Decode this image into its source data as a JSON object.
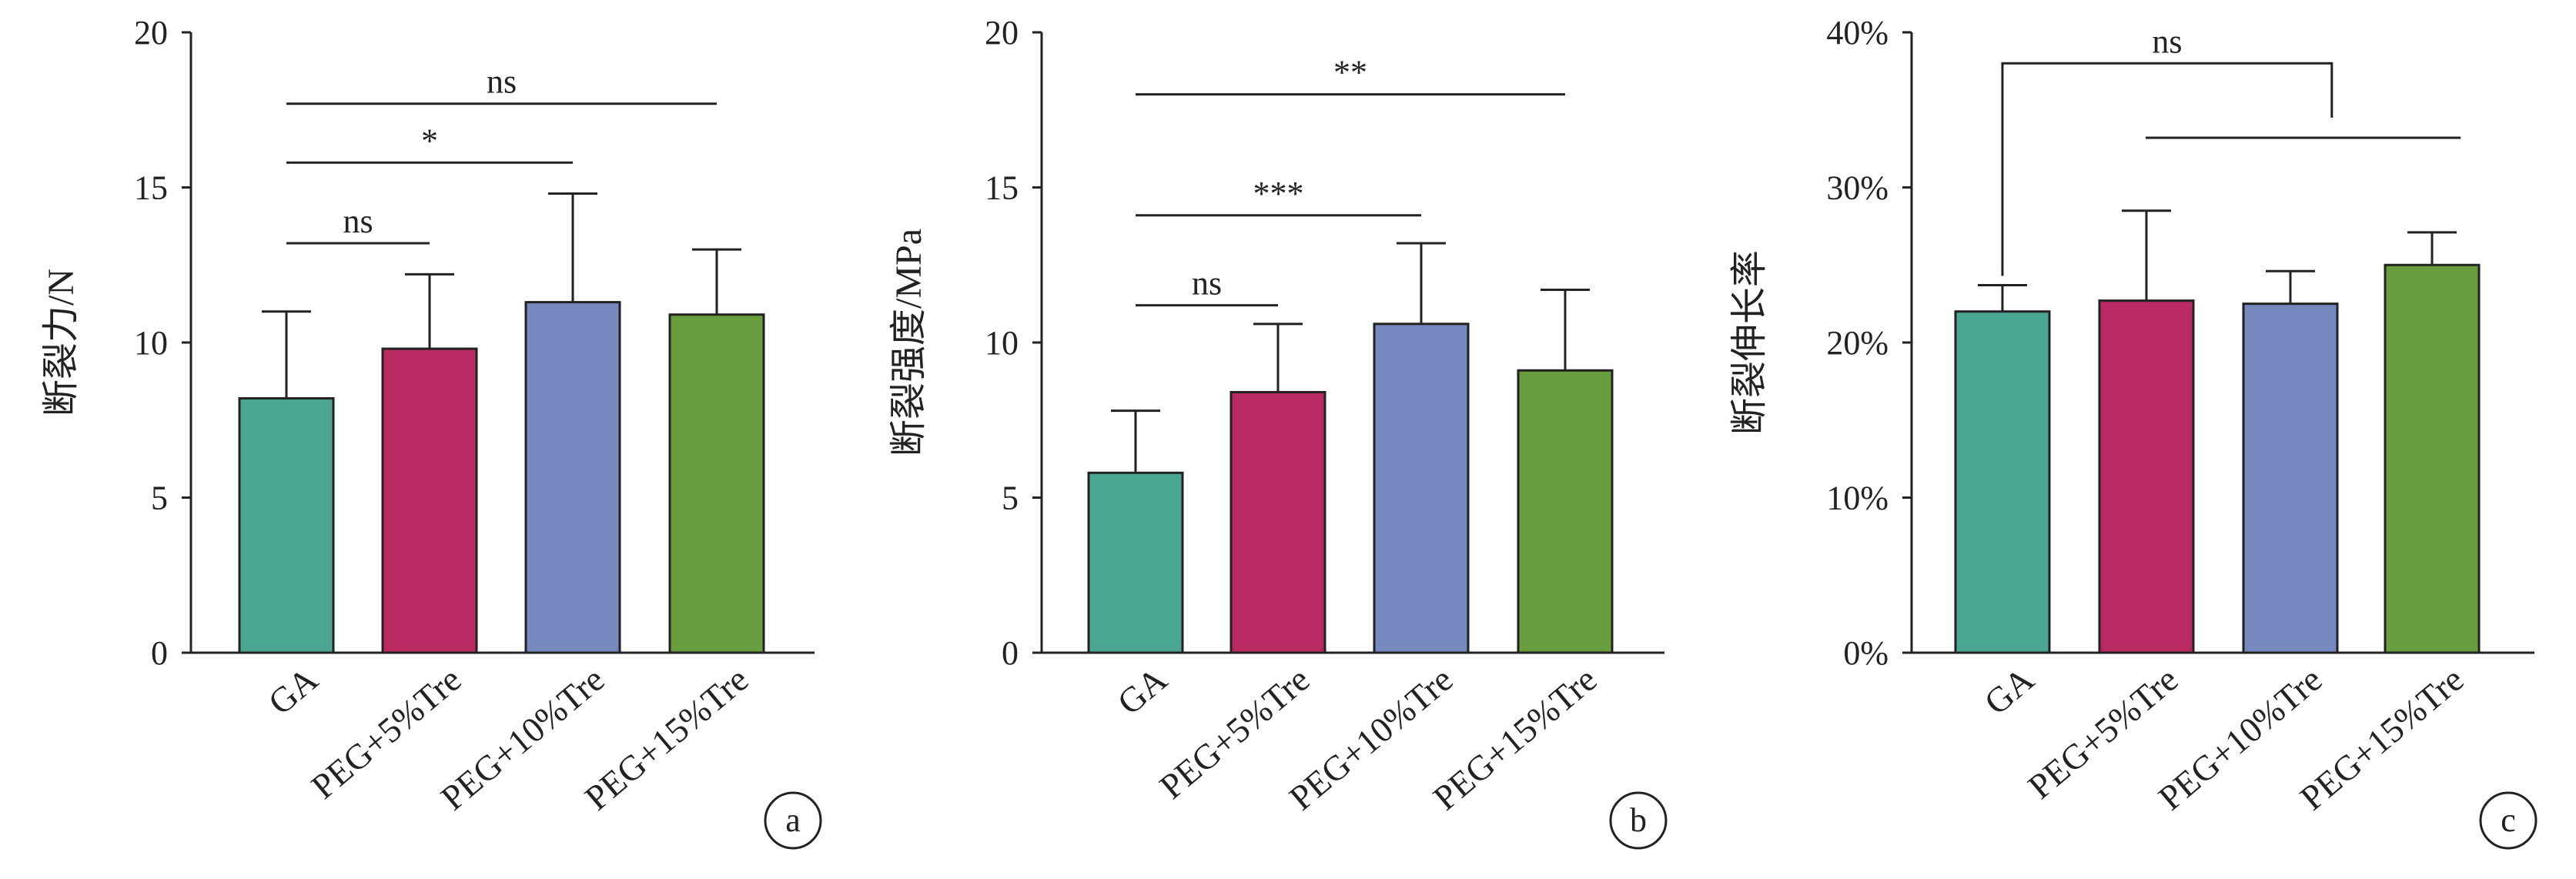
{
  "colors": {
    "axis": "#222222",
    "series": [
      "#4aa690",
      "#b92a62",
      "#7589bf",
      "#689e3d"
    ]
  },
  "chart_data": [
    {
      "type": "bar",
      "panel_label": "a",
      "categories": [
        "GA",
        "PEG+5%Tre",
        "PEG+10%Tre",
        "PEG+15%Tre"
      ],
      "values": [
        8.2,
        9.8,
        11.3,
        10.9
      ],
      "errors": [
        2.8,
        2.4,
        3.5,
        2.1
      ],
      "ylabel": "断裂力/N",
      "ylim": [
        0,
        20
      ],
      "yticks": [
        0,
        5,
        10,
        15,
        20
      ],
      "ytick_labels": [
        "0",
        "5",
        "10",
        "15",
        "20"
      ],
      "significance": [
        {
          "from": 0,
          "to": 3,
          "y": 17.7,
          "label": "ns"
        },
        {
          "from": 0,
          "to": 2,
          "y": 15.8,
          "label": "*"
        },
        {
          "from": 0,
          "to": 1,
          "y": 13.2,
          "label": "ns"
        }
      ]
    },
    {
      "type": "bar",
      "panel_label": "b",
      "categories": [
        "GA",
        "PEG+5%Tre",
        "PEG+10%Tre",
        "PEG+15%Tre"
      ],
      "values": [
        5.8,
        8.4,
        10.6,
        9.1
      ],
      "errors": [
        2.0,
        2.2,
        2.6,
        2.6
      ],
      "ylabel": "断裂强度/MPa",
      "ylim": [
        0,
        20
      ],
      "yticks": [
        0,
        5,
        10,
        15,
        20
      ],
      "ytick_labels": [
        "0",
        "5",
        "10",
        "15",
        "20"
      ],
      "significance": [
        {
          "from": 0,
          "to": 3,
          "y": 18.0,
          "label": "**"
        },
        {
          "from": 0,
          "to": 2,
          "y": 14.1,
          "label": "***"
        },
        {
          "from": 0,
          "to": 1,
          "y": 11.2,
          "label": "ns"
        }
      ]
    },
    {
      "type": "bar",
      "panel_label": "c",
      "categories": [
        "GA",
        "PEG+5%Tre",
        "PEG+10%Tre",
        "PEG+15%Tre"
      ],
      "values": [
        22,
        22.7,
        22.5,
        25
      ],
      "errors": [
        1.7,
        5.8,
        2.1,
        2.1
      ],
      "ylabel": "断裂伸长率",
      "ylim": [
        0,
        40
      ],
      "yticks": [
        0,
        10,
        20,
        30,
        40
      ],
      "ytick_labels": [
        "0%",
        "10%",
        "20%",
        "30%",
        "40%"
      ],
      "significance_bracket": {
        "left_bar": 0,
        "left_bottom": 24.3,
        "top": 38.0,
        "right_x": 2.3,
        "right_bottom": 34.5,
        "label": "ns",
        "group_line": {
          "from": 1,
          "to": 3.2,
          "y": 33.2
        }
      }
    }
  ]
}
